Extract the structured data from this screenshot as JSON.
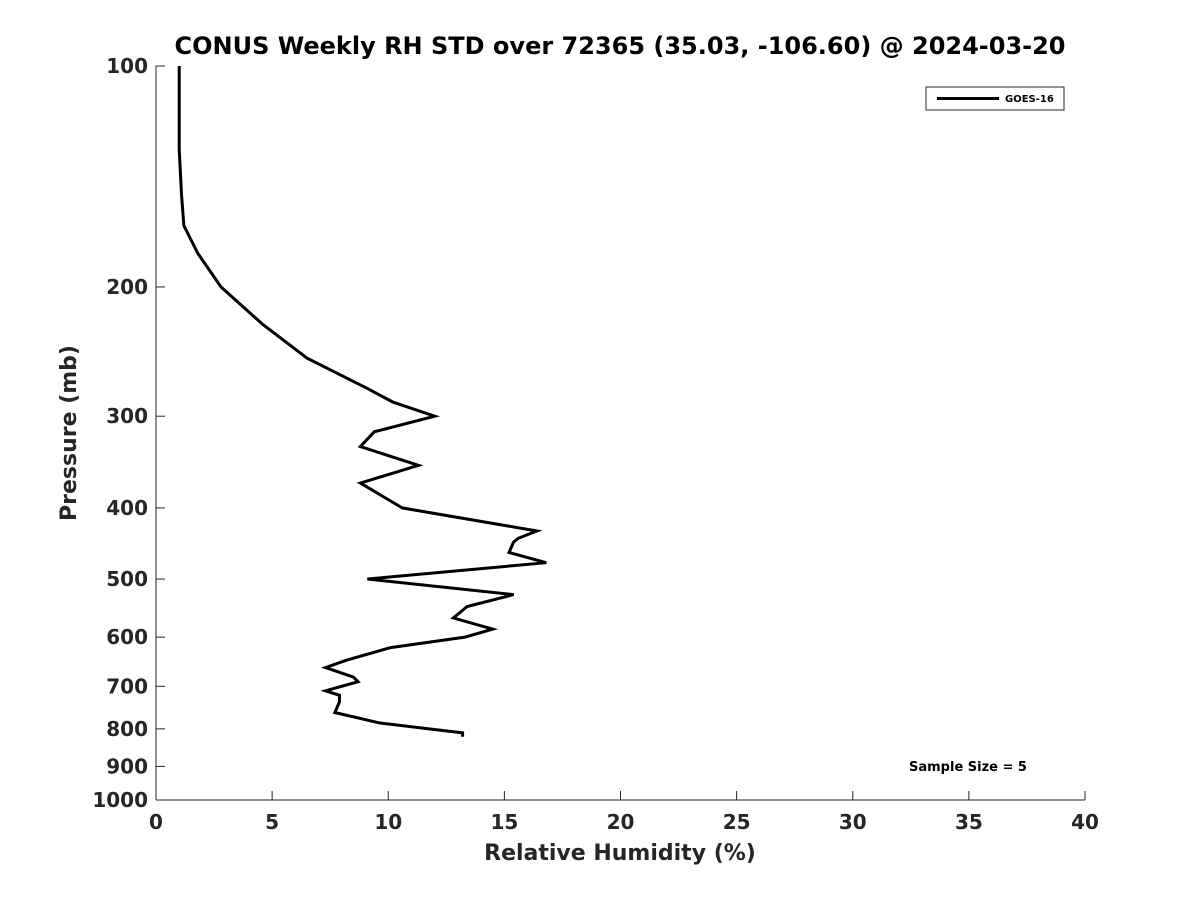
{
  "chart_data": {
    "type": "line",
    "title": "CONUS Weekly RH STD over 72365 (35.03, -106.60) @ 2024-03-20",
    "xlabel": "Relative Humidity (%)",
    "ylabel": "Pressure (mb)",
    "xlim": [
      0,
      40
    ],
    "ylim": [
      100,
      1000
    ],
    "y_scale": "log",
    "y_reversed": true,
    "xticks": [
      0,
      5,
      10,
      15,
      20,
      25,
      30,
      35,
      40
    ],
    "yticks": [
      100,
      200,
      300,
      400,
      500,
      600,
      700,
      800,
      900,
      1000
    ],
    "grid": false,
    "legend_position": "top-right",
    "annotation": "Sample Size = 5",
    "series": [
      {
        "name": "GOES-16",
        "color": "#000000",
        "points": [
          [
            1.0,
            100
          ],
          [
            1.0,
            110
          ],
          [
            1.0,
            120
          ],
          [
            1.0,
            130
          ],
          [
            1.1,
            150
          ],
          [
            1.2,
            165
          ],
          [
            1.8,
            180
          ],
          [
            2.8,
            200
          ],
          [
            4.6,
            225
          ],
          [
            6.5,
            250
          ],
          [
            9.1,
            275
          ],
          [
            10.2,
            287
          ],
          [
            12.0,
            300
          ],
          [
            9.4,
            315
          ],
          [
            8.8,
            330
          ],
          [
            11.3,
            350
          ],
          [
            8.8,
            370
          ],
          [
            10.6,
            400
          ],
          [
            16.4,
            430
          ],
          [
            15.6,
            440
          ],
          [
            15.4,
            445
          ],
          [
            15.2,
            460
          ],
          [
            16.8,
            475
          ],
          [
            9.1,
            500
          ],
          [
            15.4,
            525
          ],
          [
            13.4,
            545
          ],
          [
            12.8,
            565
          ],
          [
            14.5,
            585
          ],
          [
            13.3,
            600
          ],
          [
            10.1,
            620
          ],
          [
            8.2,
            645
          ],
          [
            7.3,
            660
          ],
          [
            8.5,
            680
          ],
          [
            8.7,
            690
          ],
          [
            7.3,
            710
          ],
          [
            7.9,
            720
          ],
          [
            7.9,
            735
          ],
          [
            7.7,
            760
          ],
          [
            9.6,
            785
          ],
          [
            13.2,
            810
          ],
          [
            13.2,
            820
          ]
        ]
      }
    ]
  }
}
